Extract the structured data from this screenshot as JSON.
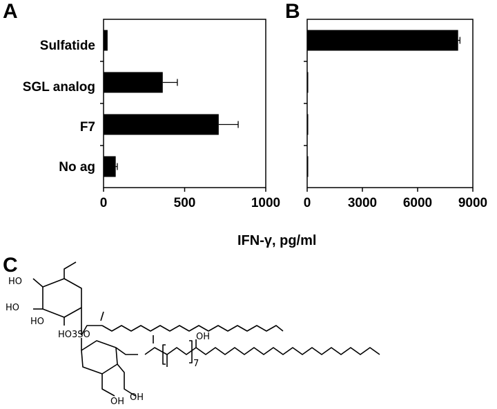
{
  "panels": {
    "a": "A",
    "b": "B",
    "c": "C"
  },
  "xlabel": "IFN-γ, pg/ml",
  "chart_data": [
    {
      "panel": "A",
      "type": "bar",
      "orientation": "horizontal",
      "categories": [
        "Sulfatide",
        "SGL analog",
        "F7",
        "No ag"
      ],
      "values": [
        25,
        365,
        710,
        75
      ],
      "errors": [
        0,
        90,
        120,
        10
      ],
      "xlim": [
        0,
        1000
      ],
      "xticks": [
        0,
        500,
        1000
      ],
      "xlabel": "IFN-γ, pg/ml"
    },
    {
      "panel": "B",
      "type": "bar",
      "orientation": "horizontal",
      "categories": [
        "Sulfatide",
        "SGL analog",
        "F7",
        "No ag"
      ],
      "values": [
        8200,
        50,
        40,
        30
      ],
      "errors": [
        100,
        0,
        0,
        0
      ],
      "xlim": [
        0,
        9000
      ],
      "xticks": [
        0,
        3000,
        6000,
        9000
      ],
      "xlabel": "IFN-γ, pg/ml"
    }
  ],
  "structure": {
    "labels": {
      "ho1": "HO",
      "ho2": "HO",
      "ho3": "HO",
      "sulfate": "HO3SO",
      "oh1": "OH",
      "oh2": "OH",
      "oh3": "OH",
      "repeat": "7"
    }
  }
}
